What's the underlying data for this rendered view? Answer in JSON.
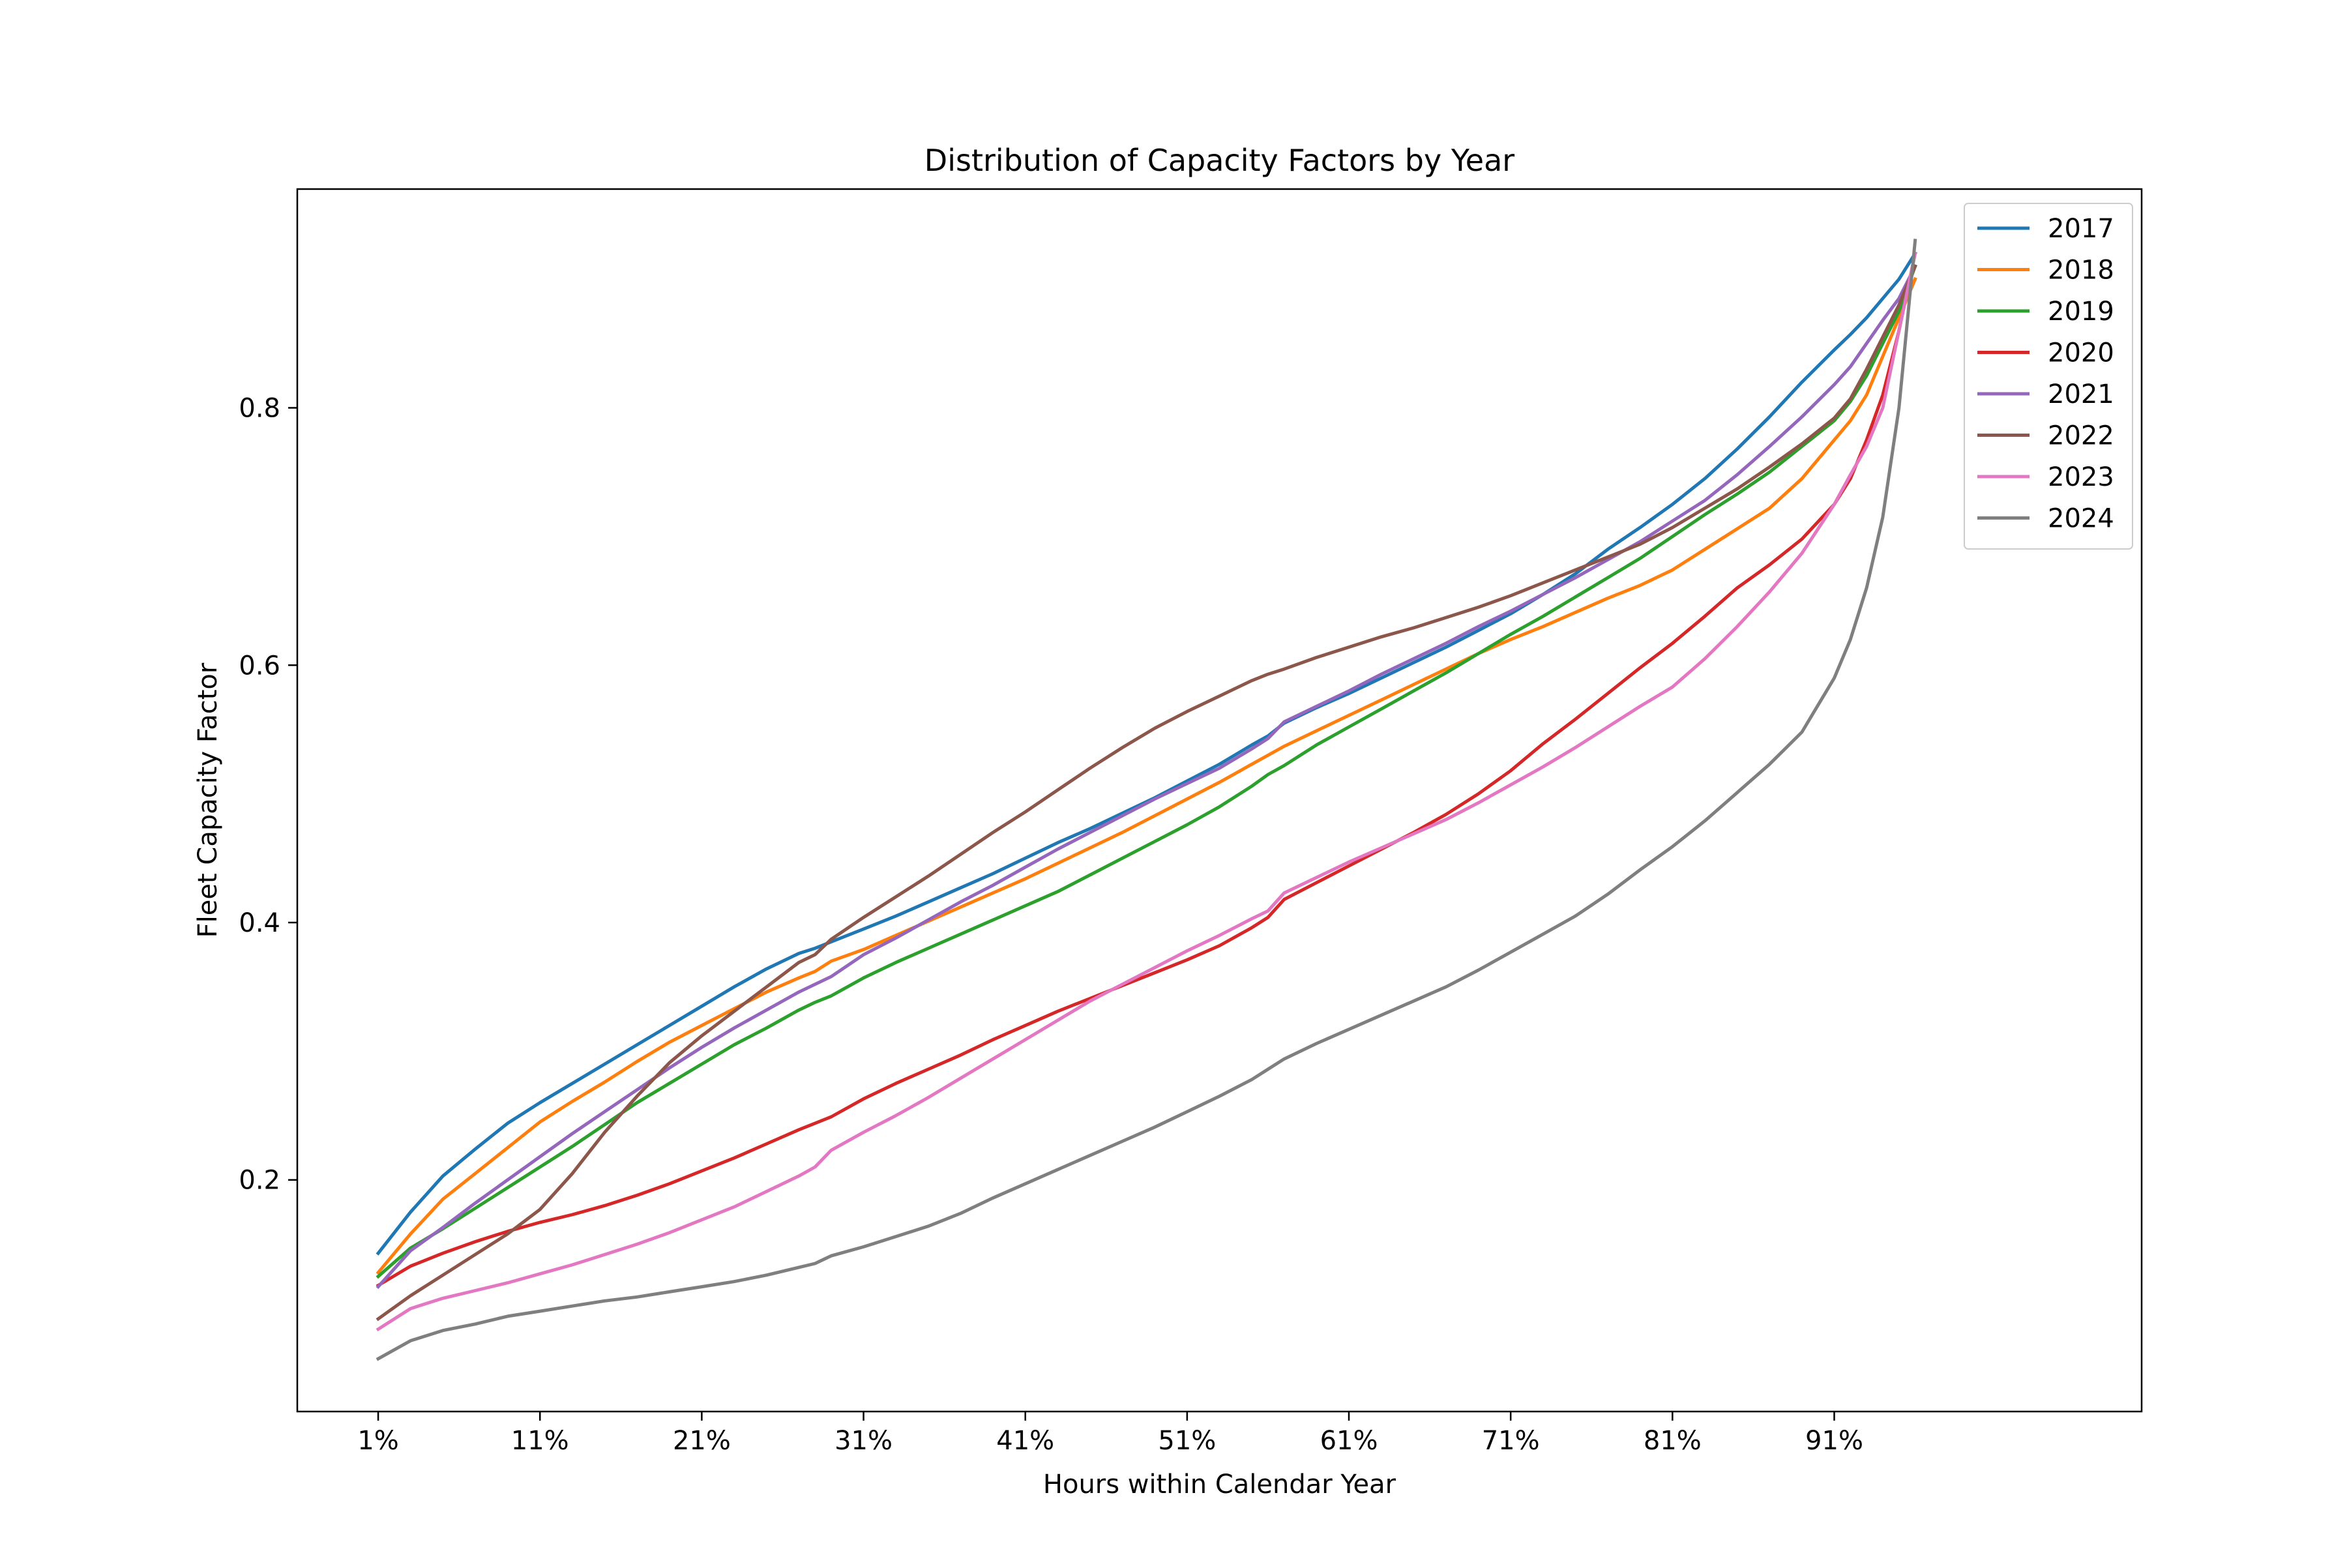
{
  "chart_data": {
    "type": "line",
    "title": "Distribution of Capacity Factors by Year",
    "xlabel": "Hours within Calendar Year",
    "ylabel": "Fleet Capacity Factor",
    "xlim": [
      -4,
      110
    ],
    "ylim": [
      0.02,
      0.97
    ],
    "xticks": [
      1,
      11,
      21,
      31,
      41,
      51,
      61,
      71,
      81,
      91
    ],
    "xtick_labels": [
      "1%",
      "11%",
      "21%",
      "31%",
      "41%",
      "51%",
      "61%",
      "71%",
      "81%",
      "91%"
    ],
    "yticks": [
      0.2,
      0.4,
      0.6,
      0.8
    ],
    "ytick_labels": [
      "0.2",
      "0.4",
      "0.6",
      "0.8"
    ],
    "grid": false,
    "legend_position": "top-right",
    "x": [
      1,
      3,
      5,
      7,
      9,
      11,
      13,
      15,
      17,
      19,
      21,
      23,
      25,
      27,
      28,
      29,
      31,
      33,
      35,
      37,
      39,
      41,
      43,
      45,
      47,
      49,
      51,
      53,
      55,
      56,
      57,
      59,
      61,
      63,
      65,
      67,
      69,
      71,
      73,
      75,
      77,
      79,
      81,
      83,
      85,
      87,
      89,
      91,
      92,
      93,
      94,
      95,
      96
    ],
    "series": [
      {
        "name": "2017",
        "color": "#1f77b4",
        "values": [
          0.143,
          0.175,
          0.203,
          0.224,
          0.244,
          0.26,
          0.275,
          0.29,
          0.305,
          0.32,
          0.335,
          0.35,
          0.364,
          0.376,
          0.38,
          0.385,
          0.395,
          0.405,
          0.416,
          0.427,
          0.438,
          0.45,
          0.462,
          0.473,
          0.485,
          0.497,
          0.51,
          0.523,
          0.538,
          0.545,
          0.555,
          0.567,
          0.578,
          0.59,
          0.602,
          0.614,
          0.627,
          0.64,
          0.655,
          0.671,
          0.69,
          0.707,
          0.725,
          0.745,
          0.768,
          0.793,
          0.82,
          0.845,
          0.857,
          0.87,
          0.885,
          0.9,
          0.92
        ]
      },
      {
        "name": "2018",
        "color": "#ff7f0e",
        "values": [
          0.128,
          0.158,
          0.185,
          0.205,
          0.225,
          0.245,
          0.261,
          0.276,
          0.292,
          0.307,
          0.32,
          0.333,
          0.346,
          0.357,
          0.362,
          0.37,
          0.379,
          0.39,
          0.401,
          0.412,
          0.423,
          0.434,
          0.446,
          0.458,
          0.47,
          0.483,
          0.496,
          0.509,
          0.523,
          0.53,
          0.537,
          0.549,
          0.561,
          0.573,
          0.585,
          0.597,
          0.609,
          0.62,
          0.63,
          0.641,
          0.652,
          0.662,
          0.674,
          0.69,
          0.706,
          0.722,
          0.745,
          0.775,
          0.79,
          0.81,
          0.84,
          0.87,
          0.9
        ]
      },
      {
        "name": "2019",
        "color": "#2ca02c",
        "values": [
          0.125,
          0.147,
          0.162,
          0.178,
          0.194,
          0.21,
          0.226,
          0.243,
          0.26,
          0.275,
          0.29,
          0.305,
          0.318,
          0.332,
          0.338,
          0.343,
          0.357,
          0.369,
          0.38,
          0.391,
          0.402,
          0.413,
          0.424,
          0.437,
          0.45,
          0.463,
          0.476,
          0.49,
          0.506,
          0.515,
          0.522,
          0.538,
          0.552,
          0.566,
          0.58,
          0.594,
          0.609,
          0.624,
          0.638,
          0.653,
          0.668,
          0.683,
          0.7,
          0.717,
          0.733,
          0.75,
          0.77,
          0.79,
          0.805,
          0.825,
          0.85,
          0.875,
          0.91
        ]
      },
      {
        "name": "2020",
        "color": "#d62728",
        "values": [
          0.118,
          0.133,
          0.143,
          0.152,
          0.16,
          0.167,
          0.173,
          0.18,
          0.188,
          0.197,
          0.207,
          0.217,
          0.228,
          0.239,
          0.244,
          0.249,
          0.263,
          0.275,
          0.286,
          0.297,
          0.309,
          0.32,
          0.331,
          0.341,
          0.351,
          0.361,
          0.371,
          0.382,
          0.396,
          0.404,
          0.418,
          0.431,
          0.444,
          0.457,
          0.47,
          0.484,
          0.5,
          0.518,
          0.539,
          0.558,
          0.578,
          0.598,
          0.617,
          0.638,
          0.66,
          0.678,
          0.698,
          0.725,
          0.745,
          0.775,
          0.81,
          0.86,
          0.92
        ]
      },
      {
        "name": "2021",
        "color": "#9467bd",
        "values": [
          0.117,
          0.145,
          0.163,
          0.182,
          0.2,
          0.218,
          0.236,
          0.253,
          0.27,
          0.287,
          0.303,
          0.318,
          0.332,
          0.346,
          0.352,
          0.358,
          0.375,
          0.388,
          0.402,
          0.416,
          0.429,
          0.443,
          0.457,
          0.47,
          0.483,
          0.496,
          0.508,
          0.52,
          0.535,
          0.543,
          0.556,
          0.568,
          0.58,
          0.593,
          0.605,
          0.617,
          0.63,
          0.642,
          0.655,
          0.668,
          0.682,
          0.696,
          0.712,
          0.728,
          0.748,
          0.77,
          0.793,
          0.818,
          0.832,
          0.85,
          0.868,
          0.885,
          0.91
        ]
      },
      {
        "name": "2022",
        "color": "#8c564b",
        "values": [
          0.092,
          0.11,
          0.126,
          0.142,
          0.158,
          0.177,
          0.205,
          0.237,
          0.265,
          0.291,
          0.312,
          0.331,
          0.35,
          0.369,
          0.375,
          0.387,
          0.404,
          0.42,
          0.436,
          0.453,
          0.47,
          0.486,
          0.503,
          0.52,
          0.536,
          0.551,
          0.564,
          0.576,
          0.588,
          0.593,
          0.597,
          0.606,
          0.614,
          0.622,
          0.629,
          0.637,
          0.645,
          0.654,
          0.664,
          0.674,
          0.684,
          0.694,
          0.707,
          0.722,
          0.737,
          0.754,
          0.772,
          0.792,
          0.807,
          0.83,
          0.855,
          0.88,
          0.91
        ]
      },
      {
        "name": "2023",
        "color": "#e377c2",
        "values": [
          0.084,
          0.1,
          0.108,
          0.114,
          0.12,
          0.127,
          0.134,
          0.142,
          0.15,
          0.159,
          0.169,
          0.179,
          0.191,
          0.203,
          0.21,
          0.223,
          0.237,
          0.25,
          0.264,
          0.279,
          0.294,
          0.309,
          0.324,
          0.339,
          0.352,
          0.365,
          0.378,
          0.39,
          0.403,
          0.409,
          0.423,
          0.435,
          0.447,
          0.458,
          0.469,
          0.48,
          0.493,
          0.507,
          0.521,
          0.536,
          0.552,
          0.568,
          0.583,
          0.605,
          0.63,
          0.657,
          0.687,
          0.725,
          0.748,
          0.77,
          0.8,
          0.86,
          0.92
        ]
      },
      {
        "name": "2024",
        "color": "#7f7f7f",
        "values": [
          0.061,
          0.075,
          0.083,
          0.088,
          0.094,
          0.098,
          0.102,
          0.106,
          0.109,
          0.113,
          0.117,
          0.121,
          0.126,
          0.132,
          0.135,
          0.141,
          0.148,
          0.156,
          0.164,
          0.174,
          0.186,
          0.197,
          0.208,
          0.219,
          0.23,
          0.241,
          0.253,
          0.265,
          0.278,
          0.286,
          0.294,
          0.306,
          0.317,
          0.328,
          0.339,
          0.35,
          0.363,
          0.377,
          0.391,
          0.405,
          0.422,
          0.441,
          0.459,
          0.479,
          0.501,
          0.523,
          0.548,
          0.59,
          0.62,
          0.66,
          0.715,
          0.8,
          0.93
        ]
      }
    ]
  }
}
